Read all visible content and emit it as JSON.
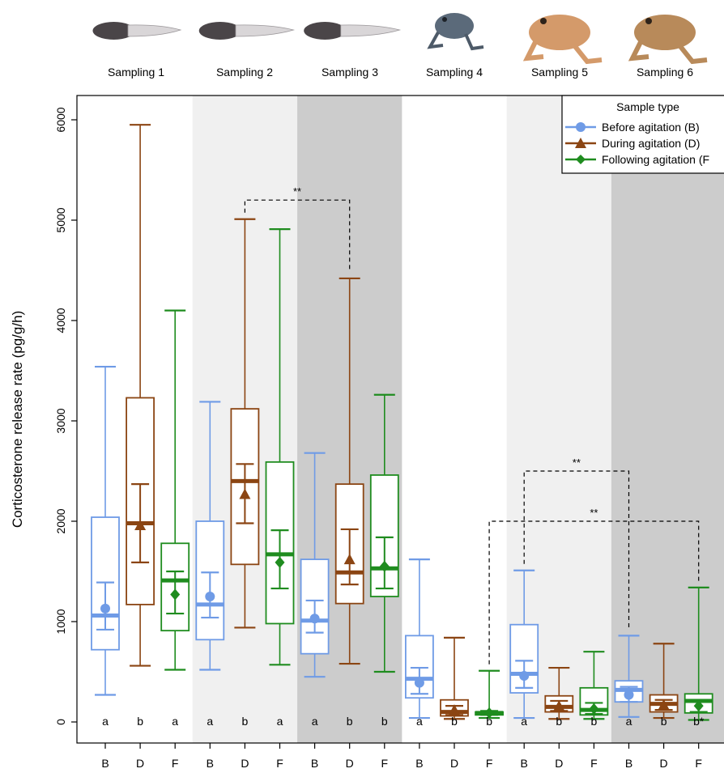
{
  "samplings": [
    "Sampling 1",
    "Sampling 2",
    "Sampling 3",
    "Sampling 4",
    "Sampling 5",
    "Sampling 6"
  ],
  "stage_icons": [
    "tadpole-icon",
    "tadpole-icon",
    "tadpole-icon",
    "metamorph-frog-icon",
    "juvenile-toad-icon",
    "adult-toad-icon"
  ],
  "colors": {
    "B": "#6f9be6",
    "D": "#8b4513",
    "F": "#1f8c1f",
    "shade_light": "#f0f0f0",
    "shade_dark": "#cccccc"
  },
  "chart_data": {
    "type": "box",
    "ylabel": "Corticosterone release rate (pg/g/h)",
    "ylim": [
      -100,
      6300
    ],
    "yticks": [
      0,
      1000,
      2000,
      3000,
      4000,
      5000,
      6000
    ],
    "legend": {
      "title": "Sample type",
      "position": "top-right",
      "entries": [
        {
          "label": "Before agitation (B)",
          "key": "B",
          "marker": "circle"
        },
        {
          "label": "During agitation (D)",
          "key": "D",
          "marker": "triangle"
        },
        {
          "label": "Following agitation (F",
          "key": "F",
          "marker": "diamond"
        }
      ]
    },
    "groups": [
      {
        "x_label": "B",
        "sampling": 1,
        "type": "B",
        "whisker_low": 270,
        "q1": 720,
        "median": 1060,
        "q3": 2040,
        "whisker_high": 3540,
        "mean": 1130,
        "ci": [
          920,
          1390
        ],
        "letter": "a"
      },
      {
        "x_label": "D",
        "sampling": 1,
        "type": "D",
        "whisker_low": 560,
        "q1": 1170,
        "median": 1980,
        "q3": 3230,
        "whisker_high": 5950,
        "mean": 1960,
        "ci": [
          1590,
          2370
        ],
        "letter": "b"
      },
      {
        "x_label": "F",
        "sampling": 1,
        "type": "F",
        "whisker_low": 520,
        "q1": 910,
        "median": 1410,
        "q3": 1780,
        "whisker_high": 4100,
        "mean": 1270,
        "ci": [
          1080,
          1500
        ],
        "letter": "a"
      },
      {
        "x_label": "B",
        "sampling": 2,
        "type": "B",
        "whisker_low": 520,
        "q1": 820,
        "median": 1170,
        "q3": 2000,
        "whisker_high": 3190,
        "mean": 1250,
        "ci": [
          1040,
          1490
        ],
        "letter": "a"
      },
      {
        "x_label": "D",
        "sampling": 2,
        "type": "D",
        "whisker_low": 940,
        "q1": 1570,
        "median": 2400,
        "q3": 3120,
        "whisker_high": 5010,
        "mean": 2270,
        "ci": [
          1980,
          2570
        ],
        "letter": "b"
      },
      {
        "x_label": "F",
        "sampling": 2,
        "type": "F",
        "whisker_low": 570,
        "q1": 980,
        "median": 1670,
        "q3": 2590,
        "whisker_high": 4910,
        "mean": 1590,
        "ci": [
          1330,
          1910
        ],
        "letter": "a"
      },
      {
        "x_label": "B",
        "sampling": 3,
        "type": "B",
        "whisker_low": 450,
        "q1": 680,
        "median": 1010,
        "q3": 1620,
        "whisker_high": 2680,
        "mean": 1030,
        "ci": [
          890,
          1210
        ],
        "letter": "a"
      },
      {
        "x_label": "D",
        "sampling": 3,
        "type": "D",
        "whisker_low": 580,
        "q1": 1180,
        "median": 1490,
        "q3": 2370,
        "whisker_high": 4420,
        "mean": 1620,
        "ci": [
          1370,
          1920
        ],
        "letter": "b"
      },
      {
        "x_label": "F",
        "sampling": 3,
        "type": "F",
        "whisker_low": 500,
        "q1": 1250,
        "median": 1530,
        "q3": 2460,
        "whisker_high": 3260,
        "mean": 1550,
        "ci": [
          1330,
          1840
        ],
        "letter": "b"
      },
      {
        "x_label": "B",
        "sampling": 4,
        "type": "B",
        "whisker_low": 40,
        "q1": 240,
        "median": 430,
        "q3": 860,
        "whisker_high": 1620,
        "mean": 390,
        "ci": [
          280,
          540
        ],
        "letter": "a"
      },
      {
        "x_label": "D",
        "sampling": 4,
        "type": "D",
        "whisker_low": 30,
        "q1": 60,
        "median": 100,
        "q3": 220,
        "whisker_high": 840,
        "mean": 120,
        "ci": [
          70,
          160
        ],
        "letter": "b"
      },
      {
        "x_label": "F",
        "sampling": 4,
        "type": "F",
        "whisker_low": 40,
        "q1": 70,
        "median": 90,
        "q3": 100,
        "whisker_high": 510,
        "mean": 90,
        "ci": [
          70,
          110
        ],
        "letter": "b"
      },
      {
        "x_label": "B",
        "sampling": 5,
        "type": "B",
        "whisker_low": 40,
        "q1": 290,
        "median": 480,
        "q3": 970,
        "whisker_high": 1510,
        "mean": 460,
        "ci": [
          340,
          610
        ],
        "letter": "a"
      },
      {
        "x_label": "D",
        "sampling": 5,
        "type": "D",
        "whisker_low": 30,
        "q1": 100,
        "median": 150,
        "q3": 260,
        "whisker_high": 540,
        "mean": 160,
        "ci": [
          110,
          210
        ],
        "letter": "b"
      },
      {
        "x_label": "F",
        "sampling": 5,
        "type": "F",
        "whisker_low": 30,
        "q1": 70,
        "median": 120,
        "q3": 340,
        "whisker_high": 700,
        "mean": 130,
        "ci": [
          80,
          190
        ],
        "letter": "b"
      },
      {
        "x_label": "B",
        "sampling": 6,
        "type": "B",
        "whisker_low": 50,
        "q1": 200,
        "median": 320,
        "q3": 410,
        "whisker_high": 860,
        "mean": 270,
        "ci": [
          200,
          350
        ],
        "letter": "a"
      },
      {
        "x_label": "D",
        "sampling": 6,
        "type": "D",
        "whisker_low": 40,
        "q1": 100,
        "median": 180,
        "q3": 270,
        "whisker_high": 780,
        "mean": 170,
        "ci": [
          120,
          220
        ],
        "letter": "b"
      },
      {
        "x_label": "F",
        "sampling": 6,
        "type": "F",
        "whisker_low": 20,
        "q1": 90,
        "median": 210,
        "q3": 280,
        "whisker_high": 1340,
        "mean": 160,
        "ci": [
          100,
          220
        ],
        "letter": "b*"
      }
    ],
    "significance": [
      {
        "from": 4,
        "to": 7,
        "y": 5200,
        "label": "**"
      },
      {
        "from": 12,
        "to": 15,
        "y": 2500,
        "label": "**"
      },
      {
        "from": 11,
        "to": 17,
        "y": 2000,
        "label": "**"
      }
    ]
  }
}
